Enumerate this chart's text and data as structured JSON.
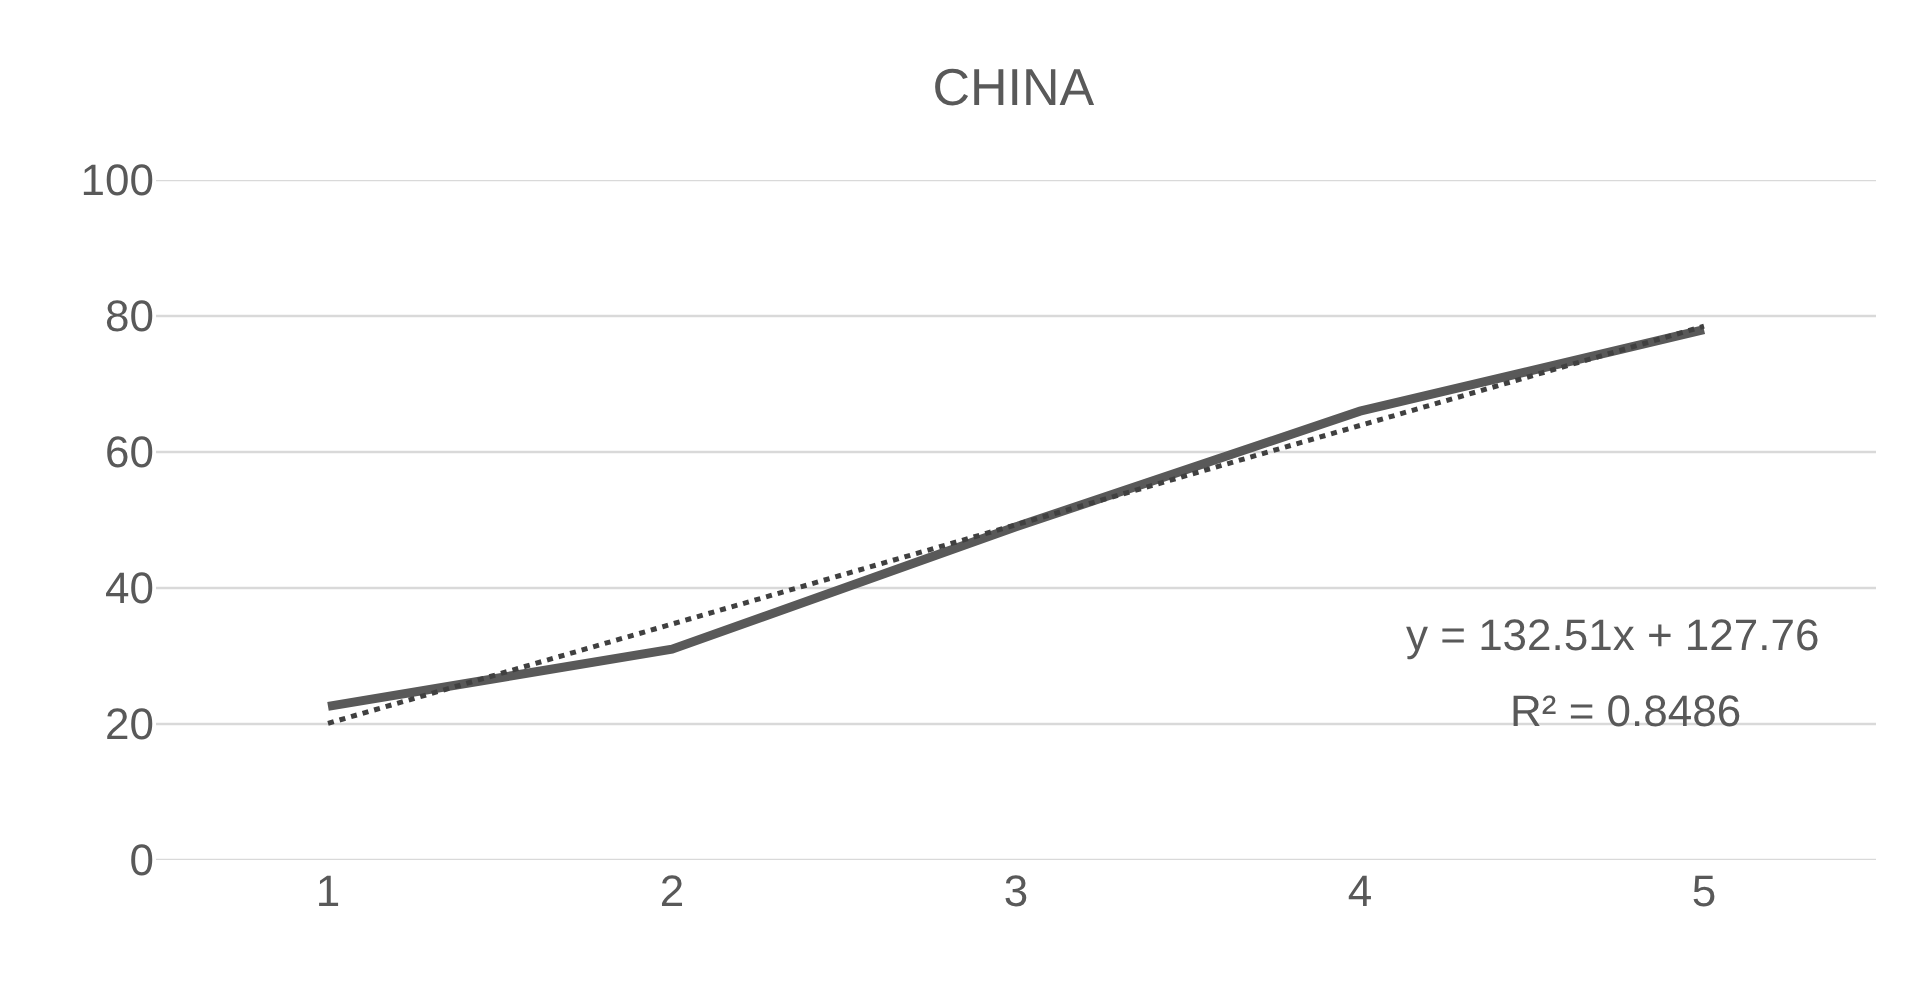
{
  "chart_data": {
    "type": "line",
    "title": "CHINA",
    "x": [
      1,
      2,
      3,
      4,
      5
    ],
    "series": [
      {
        "color": "#595959",
        "values": [
          22.6,
          31,
          49,
          66,
          78
        ],
        "line_style": "solid"
      },
      {
        "type": "line",
        "color": "#404040",
        "x": [
          1,
          5
        ],
        "values": [
          20.1,
          78.5
        ],
        "line_style": "dotted"
      }
    ],
    "xlim": [
      0.5,
      5.5
    ],
    "xticks": [
      1,
      2,
      3,
      4,
      5
    ],
    "ylim": [
      0,
      100
    ],
    "yticks": [
      0,
      20,
      40,
      60,
      80,
      100
    ],
    "grid": "y",
    "marker": "none",
    "annotations": [
      "y = 132.51x + 127.76",
      "R² = 0.8486"
    ]
  }
}
